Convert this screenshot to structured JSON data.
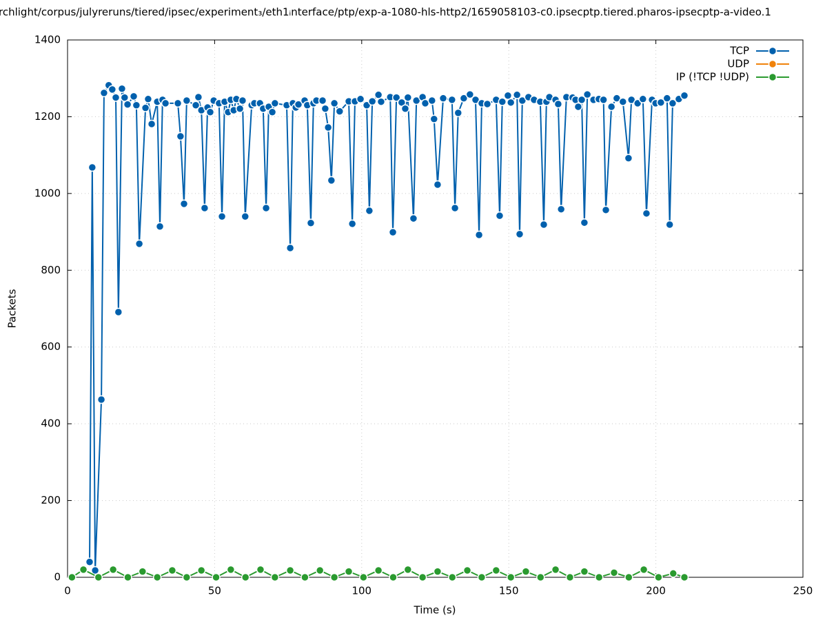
{
  "chart_data": {
    "type": "line",
    "title": "rchlight/corpus/julyreruns/tiered/ipsec/experiment₃/eth1ᵢnterface/ptp/exp-a-1080-hls-http2/1659058103-c0.ipsecptp.tiered.pharos-ipsecptp-a-video.1",
    "xlabel": "Time (s)",
    "ylabel": "Packets",
    "xlim": [
      0,
      250
    ],
    "xticks": [
      0,
      50,
      100,
      150,
      200,
      250
    ],
    "ylim": [
      0,
      1400
    ],
    "yticks": [
      0,
      200,
      400,
      600,
      800,
      1000,
      1200,
      1400
    ],
    "grid": true,
    "legend": "top-right",
    "series": [
      {
        "name": "TCP",
        "color": "#0060ad",
        "x": [
          7.5,
          8.4,
          9.4,
          11.5,
          12.4,
          14,
          15.2,
          16.4,
          17.3,
          18.5,
          19.4,
          20.4,
          22.5,
          23.4,
          24.4,
          26.5,
          27.4,
          28.6,
          30.5,
          31.4,
          32.3,
          33.3,
          37.5,
          38.4,
          39.6,
          40.5,
          43.6,
          44.5,
          45.5,
          46.6,
          47.6,
          48.5,
          49.7,
          51.5,
          52.5,
          53.4,
          54.6,
          55.5,
          56.5,
          57.4,
          58.6,
          59.5,
          60.4,
          62.6,
          63.5,
          65.4,
          66.5,
          67.5,
          68.4,
          69.6,
          70.5,
          74.5,
          75.7,
          76.6,
          77.6,
          78.5,
          80.6,
          81.5,
          82.7,
          83.6,
          84.6,
          86.7,
          87.6,
          88.6,
          89.7,
          90.7,
          92.5,
          95.6,
          96.8,
          97.7,
          99.6,
          101.7,
          102.6,
          103.6,
          105.7,
          106.6,
          109.7,
          110.6,
          111.8,
          113.6,
          114.8,
          115.7,
          117.6,
          118.6,
          120.7,
          121.6,
          123.9,
          124.6,
          125.8,
          127.7,
          130.7,
          131.7,
          132.8,
          134.7,
          136.8,
          138.7,
          139.9,
          140.8,
          142.7,
          145.7,
          146.9,
          147.8,
          149.7,
          150.7,
          152.8,
          153.7,
          154.6,
          156.7,
          158.6,
          160.7,
          161.9,
          162.8,
          163.8,
          165.9,
          166.8,
          167.8,
          169.6,
          171.7,
          172.7,
          173.6,
          174.8,
          175.7,
          176.7,
          178.8,
          180.6,
          182.2,
          183,
          184.9,
          186.7,
          188.8,
          190.7,
          191.7,
          193.8,
          195.6,
          196.8,
          198.7,
          199.9,
          201.7,
          203.8,
          204.7,
          205.7,
          207.8,
          209.7
        ],
        "values": [
          40,
          1068,
          18,
          463,
          1262,
          1282,
          1271,
          1250,
          691,
          1273,
          1250,
          1232,
          1253,
          1230,
          869,
          1223,
          1246,
          1181,
          1239,
          914,
          1244,
          1235,
          1235,
          1149,
          973,
          1242,
          1230,
          1251,
          1217,
          962,
          1224,
          1212,
          1242,
          1235,
          940,
          1239,
          1212,
          1244,
          1217,
          1246,
          1221,
          1242,
          940,
          1230,
          1235,
          1235,
          1221,
          962,
          1226,
          1212,
          1235,
          1230,
          858,
          1235,
          1224,
          1232,
          1242,
          1230,
          923,
          1235,
          1242,
          1242,
          1221,
          1172,
          1034,
          1235,
          1214,
          1240,
          921,
          1240,
          1246,
          1230,
          955,
          1240,
          1257,
          1239,
          1251,
          899,
          1250,
          1237,
          1221,
          1250,
          935,
          1242,
          1251,
          1235,
          1242,
          1194,
          1023,
          1248,
          1244,
          962,
          1210,
          1248,
          1258,
          1244,
          892,
          1235,
          1233,
          1244,
          942,
          1239,
          1255,
          1237,
          1257,
          894,
          1242,
          1251,
          1244,
          1239,
          919,
          1239,
          1251,
          1244,
          1233,
          959,
          1251,
          1250,
          1244,
          1226,
          1244,
          924,
          1258,
          1244,
          1246,
          1244,
          957,
          1226,
          1248,
          1239,
          1092,
          1244,
          1235,
          1246,
          948,
          1244,
          1235,
          1237,
          1248,
          919,
          1235,
          1246,
          1255
        ]
      },
      {
        "name": "UDP",
        "color": "#f0820a",
        "x": [],
        "values": []
      },
      {
        "name": "IP (!TCP  !UDP)",
        "color": "#2a9a2f",
        "x": [
          1.5,
          5.4,
          10.5,
          15.5,
          20.5,
          25.5,
          30.5,
          35.6,
          40.5,
          45.5,
          50.5,
          55.5,
          60.5,
          65.6,
          70.5,
          75.7,
          80.7,
          85.8,
          90.7,
          95.6,
          100.6,
          105.7,
          110.7,
          115.7,
          120.7,
          125.8,
          130.8,
          135.9,
          140.8,
          145.7,
          150.7,
          155.8,
          160.8,
          165.9,
          170.8,
          175.7,
          180.7,
          185.8,
          190.8,
          195.9,
          200.9,
          205.9,
          209.7
        ],
        "values": [
          0,
          20,
          0,
          20,
          0,
          15,
          0,
          18,
          0,
          18,
          0,
          20,
          0,
          20,
          0,
          18,
          0,
          18,
          0,
          15,
          0,
          18,
          0,
          20,
          0,
          15,
          0,
          18,
          0,
          18,
          0,
          15,
          0,
          20,
          0,
          15,
          0,
          12,
          0,
          20,
          0,
          10,
          0
        ]
      }
    ]
  }
}
